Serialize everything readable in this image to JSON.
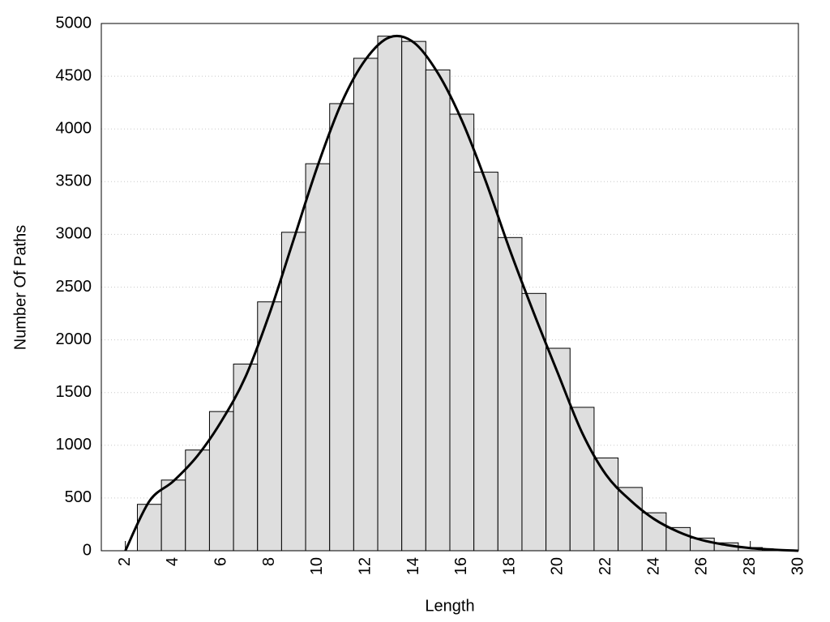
{
  "chart_data": {
    "type": "histogram",
    "x_label": "Length",
    "y_label": "Number Of Paths",
    "bins": [
      2.5,
      3.5,
      4.5,
      5.5,
      6.5,
      7.5,
      8.5,
      9.5,
      10.5,
      11.5,
      12.5,
      13.5,
      14.5,
      15.5,
      16.5,
      17.5,
      18.5,
      19.5,
      20.5,
      21.5,
      22.5,
      23.5,
      24.5,
      25.5,
      26.5,
      27.5,
      28.5,
      29.5
    ],
    "counts": [
      440,
      670,
      955,
      1320,
      1770,
      2360,
      3020,
      3670,
      4240,
      4670,
      4880,
      4830,
      4560,
      4140,
      3590,
      2970,
      2440,
      1920,
      1360,
      880,
      600,
      360,
      220,
      120,
      75,
      30,
      10
    ],
    "color": "#dedede",
    "curve": {
      "x": [
        2,
        3,
        4,
        5,
        6,
        7,
        8,
        9,
        10,
        11,
        12,
        13,
        14,
        15,
        16,
        17,
        18,
        19,
        20,
        21,
        22,
        23,
        24,
        25,
        26,
        27,
        28,
        29,
        30
      ],
      "values": [
        0,
        470,
        660,
        900,
        1230,
        1650,
        2250,
        2950,
        3650,
        4250,
        4660,
        4870,
        4820,
        4530,
        4080,
        3500,
        2850,
        2250,
        1680,
        1120,
        720,
        480,
        300,
        180,
        100,
        55,
        25,
        10,
        0
      ],
      "color": "#000000"
    },
    "xlim": [
      1,
      30
    ],
    "ylim": [
      0,
      5000
    ],
    "xticks": [
      2,
      4,
      6,
      8,
      10,
      12,
      14,
      16,
      18,
      20,
      22,
      24,
      26,
      28,
      30
    ],
    "yticks": [
      0,
      500,
      1000,
      1500,
      2000,
      2500,
      3000,
      3500,
      4000,
      4500,
      5000
    ],
    "grid": true
  }
}
